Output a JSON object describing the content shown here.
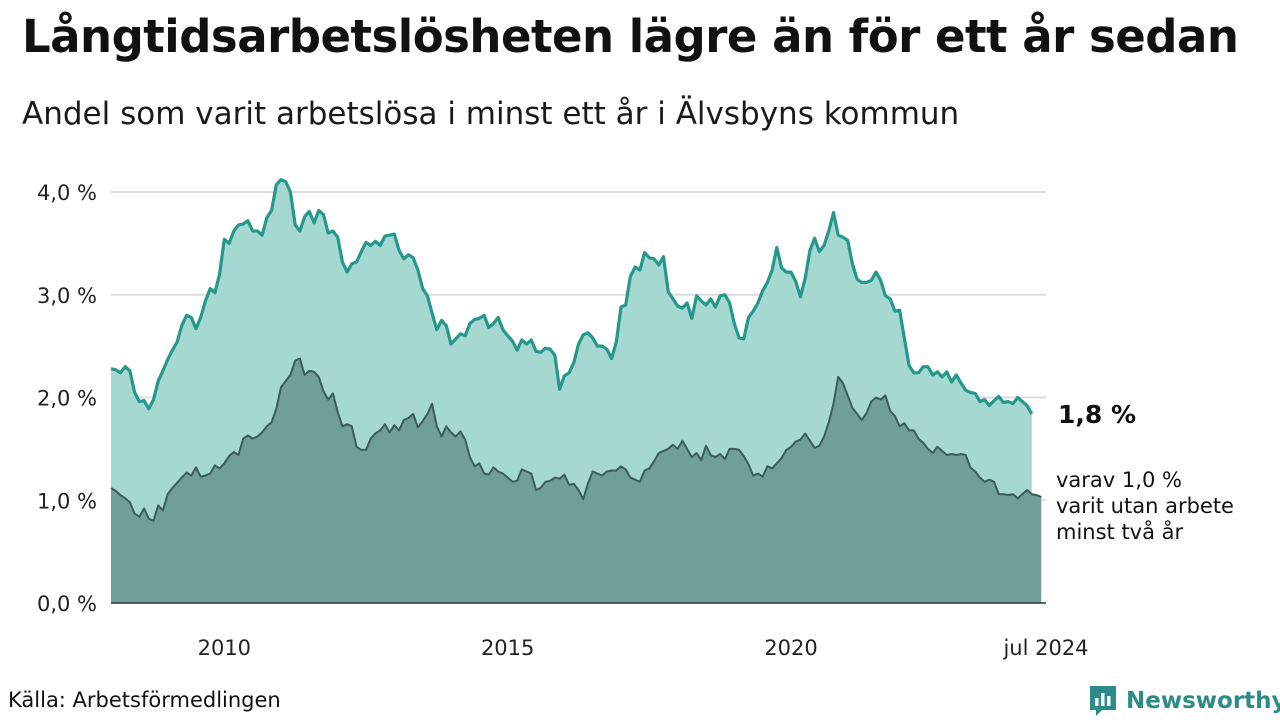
{
  "title": "Långtidsarbetslösheten lägre än för ett år sedan",
  "subtitle": "Andel som varit arbetslösa i minst ett år i Älvsbyns kommun",
  "source": "Källa: Arbetsförmedlingen",
  "brand": "Newsworthy",
  "colors": {
    "total_line": "#26978b",
    "total_fill": "#a6d8d2",
    "long_line": "#3b5d58",
    "long_fill": "#6f9f98",
    "grid": "#dddddd",
    "brand": "#2d8c87"
  },
  "chart_data": {
    "type": "area",
    "x_start": "2008-01",
    "x_end": "2024-07",
    "frequency": "monthly",
    "xlim": [
      "2008-01",
      "2024-07"
    ],
    "ylim": [
      0,
      4.0
    ],
    "y_ticks": [
      {
        "value": 0,
        "label": "0,0 %"
      },
      {
        "value": 1,
        "label": "1,0 %"
      },
      {
        "value": 2,
        "label": "2,0 %"
      },
      {
        "value": 3,
        "label": "3,0 %"
      },
      {
        "value": 4,
        "label": "4,0 %"
      }
    ],
    "x_ticks": [
      {
        "date": "2010-01",
        "label": "2010"
      },
      {
        "date": "2015-01",
        "label": "2015"
      },
      {
        "date": "2020-01",
        "label": "2020"
      },
      {
        "date": "2024-07",
        "label": "jul 2024"
      }
    ],
    "grid": true,
    "series": [
      {
        "key": "total",
        "unit": "%",
        "end_label": "1,8 %",
        "values": [
          2.28,
          2.27,
          2.24,
          2.3,
          2.26,
          2.05,
          1.96,
          1.97,
          1.89,
          1.98,
          2.16,
          2.26,
          2.37,
          2.46,
          2.54,
          2.7,
          2.8,
          2.78,
          2.67,
          2.78,
          2.94,
          3.06,
          3.02,
          3.2,
          3.54,
          3.5,
          3.62,
          3.68,
          3.69,
          3.72,
          3.62,
          3.62,
          3.58,
          3.75,
          3.82,
          4.07,
          4.12,
          4.1,
          4.0,
          3.68,
          3.62,
          3.76,
          3.81,
          3.7,
          3.82,
          3.78,
          3.6,
          3.62,
          3.56,
          3.32,
          3.22,
          3.3,
          3.32,
          3.42,
          3.51,
          3.48,
          3.52,
          3.48,
          3.57,
          3.58,
          3.59,
          3.43,
          3.35,
          3.39,
          3.36,
          3.24,
          3.06,
          2.99,
          2.82,
          2.66,
          2.75,
          2.7,
          2.52,
          2.57,
          2.62,
          2.6,
          2.72,
          2.76,
          2.77,
          2.8,
          2.68,
          2.72,
          2.78,
          2.66,
          2.6,
          2.55,
          2.46,
          2.56,
          2.52,
          2.56,
          2.45,
          2.44,
          2.48,
          2.47,
          2.41,
          2.08,
          2.21,
          2.24,
          2.34,
          2.52,
          2.61,
          2.63,
          2.58,
          2.5,
          2.5,
          2.47,
          2.38,
          2.54,
          2.88,
          2.9,
          3.18,
          3.27,
          3.24,
          3.41,
          3.36,
          3.35,
          3.29,
          3.37,
          3.03,
          2.96,
          2.89,
          2.87,
          2.92,
          2.77,
          2.99,
          2.94,
          2.9,
          2.96,
          2.88,
          2.99,
          3.0,
          2.92,
          2.72,
          2.58,
          2.57,
          2.78,
          2.84,
          2.92,
          3.04,
          3.12,
          3.24,
          3.46,
          3.26,
          3.22,
          3.22,
          3.13,
          2.98,
          3.16,
          3.43,
          3.55,
          3.42,
          3.48,
          3.62,
          3.8,
          3.58,
          3.56,
          3.53,
          3.3,
          3.15,
          3.12,
          3.12,
          3.14,
          3.22,
          3.14,
          2.99,
          2.96,
          2.84,
          2.85,
          2.58,
          2.31,
          2.24,
          2.24,
          2.3,
          2.3,
          2.22,
          2.25,
          2.2,
          2.25,
          2.15,
          2.22,
          2.14,
          2.07,
          2.05,
          2.04,
          1.96,
          1.98,
          1.92,
          1.97,
          2.01,
          1.95,
          1.96,
          1.94,
          2.0,
          1.96,
          1.92,
          1.84
        ]
      },
      {
        "key": "long",
        "unit": "%",
        "end_label": "varav 1,0 % varit utan arbete minst två år",
        "values": [
          1.12,
          1.09,
          1.05,
          1.02,
          0.98,
          0.87,
          0.84,
          0.92,
          0.82,
          0.8,
          0.95,
          0.9,
          1.06,
          1.12,
          1.17,
          1.22,
          1.27,
          1.24,
          1.32,
          1.23,
          1.24,
          1.26,
          1.34,
          1.31,
          1.36,
          1.43,
          1.47,
          1.44,
          1.6,
          1.63,
          1.6,
          1.62,
          1.66,
          1.72,
          1.76,
          1.89,
          2.1,
          2.16,
          2.22,
          2.36,
          2.38,
          2.22,
          2.26,
          2.25,
          2.2,
          2.06,
          1.98,
          2.04,
          1.86,
          1.72,
          1.74,
          1.72,
          1.52,
          1.49,
          1.49,
          1.6,
          1.65,
          1.68,
          1.74,
          1.66,
          1.73,
          1.68,
          1.78,
          1.8,
          1.84,
          1.71,
          1.77,
          1.84,
          1.94,
          1.72,
          1.62,
          1.72,
          1.66,
          1.62,
          1.67,
          1.59,
          1.42,
          1.33,
          1.36,
          1.26,
          1.25,
          1.32,
          1.28,
          1.26,
          1.22,
          1.18,
          1.19,
          1.3,
          1.28,
          1.26,
          1.1,
          1.12,
          1.18,
          1.19,
          1.22,
          1.21,
          1.25,
          1.15,
          1.16,
          1.1,
          1.01,
          1.16,
          1.28,
          1.26,
          1.24,
          1.28,
          1.29,
          1.29,
          1.33,
          1.3,
          1.22,
          1.2,
          1.18,
          1.29,
          1.31,
          1.38,
          1.46,
          1.48,
          1.5,
          1.54,
          1.5,
          1.58,
          1.5,
          1.42,
          1.46,
          1.39,
          1.53,
          1.44,
          1.42,
          1.45,
          1.4,
          1.5,
          1.5,
          1.49,
          1.43,
          1.35,
          1.24,
          1.26,
          1.23,
          1.33,
          1.31,
          1.36,
          1.41,
          1.49,
          1.52,
          1.57,
          1.59,
          1.65,
          1.58,
          1.51,
          1.53,
          1.62,
          1.76,
          1.94,
          2.2,
          2.14,
          2.02,
          1.9,
          1.84,
          1.78,
          1.85,
          1.96,
          2.0,
          1.98,
          2.02,
          1.87,
          1.82,
          1.72,
          1.75,
          1.68,
          1.68,
          1.6,
          1.56,
          1.5,
          1.46,
          1.52,
          1.48,
          1.44,
          1.45,
          1.44,
          1.45,
          1.44,
          1.32,
          1.28,
          1.22,
          1.18,
          1.2,
          1.18,
          1.06,
          1.06,
          1.05,
          1.06,
          1.02,
          1.06,
          1.1,
          1.06,
          1.05,
          1.03
        ]
      }
    ]
  }
}
